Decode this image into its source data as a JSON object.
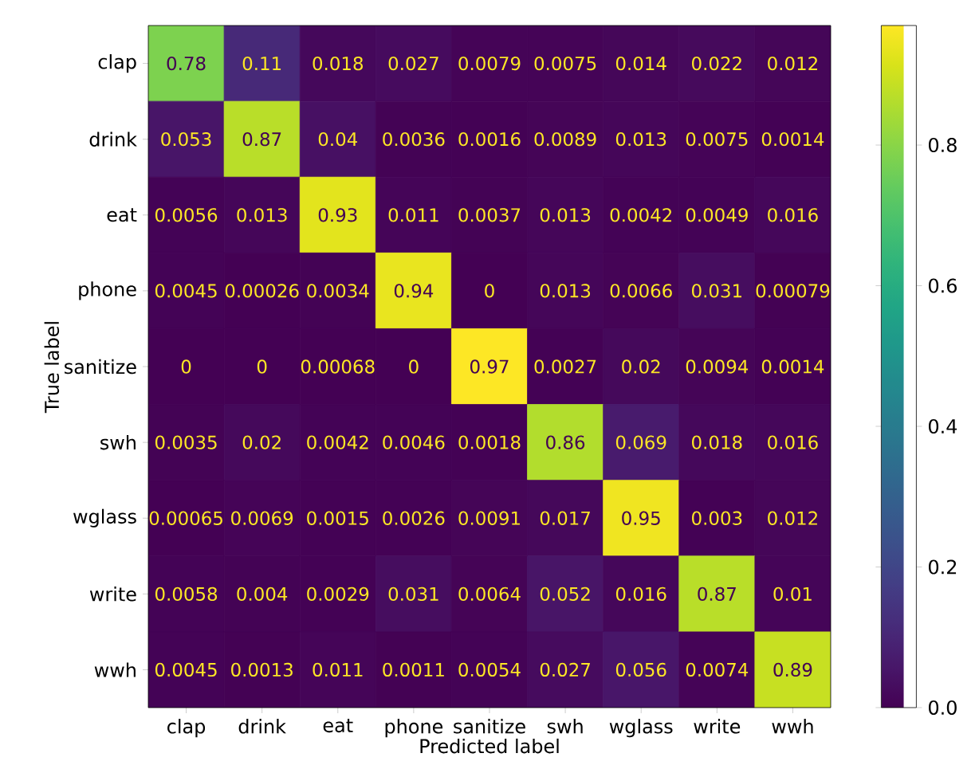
{
  "chart_data": {
    "type": "heatmap",
    "xlabel": "Predicted label",
    "ylabel": "True label",
    "categories": [
      "clap",
      "drink",
      "eat",
      "phone",
      "sanitize",
      "swh",
      "wglass",
      "write",
      "wwh"
    ],
    "y_categories": [
      "clap",
      "drink",
      "eat",
      "phone",
      "sanitize",
      "swh",
      "wglass",
      "write",
      "wwh"
    ],
    "cells": [
      [
        0.78,
        0.11,
        0.018,
        0.027,
        0.0079,
        0.0075,
        0.014,
        0.022,
        0.012
      ],
      [
        0.053,
        0.87,
        0.04,
        0.0036,
        0.0016,
        0.0089,
        0.013,
        0.0075,
        0.0014
      ],
      [
        0.0056,
        0.013,
        0.93,
        0.011,
        0.0037,
        0.013,
        0.0042,
        0.0049,
        0.016
      ],
      [
        0.0045,
        0.00026,
        0.0034,
        0.94,
        0,
        0.013,
        0.0066,
        0.031,
        0.00079
      ],
      [
        0,
        0,
        0.00068,
        0,
        0.97,
        0.0027,
        0.02,
        0.0094,
        0.0014
      ],
      [
        0.0035,
        0.02,
        0.0042,
        0.0046,
        0.0018,
        0.86,
        0.069,
        0.018,
        0.016
      ],
      [
        0.00065,
        0.0069,
        0.0015,
        0.0026,
        0.0091,
        0.017,
        0.95,
        0.003,
        0.012
      ],
      [
        0.0058,
        0.004,
        0.0029,
        0.031,
        0.0064,
        0.052,
        0.016,
        0.87,
        0.01
      ],
      [
        0.0045,
        0.0013,
        0.011,
        0.0011,
        0.0054,
        0.027,
        0.056,
        0.0074,
        0.89
      ]
    ],
    "clim": [
      0,
      0.97
    ],
    "cticks": [
      {
        "value": 0,
        "label": "0.0"
      },
      0.2,
      0.4,
      0.6,
      0.8
    ],
    "data_labels": true
  }
}
